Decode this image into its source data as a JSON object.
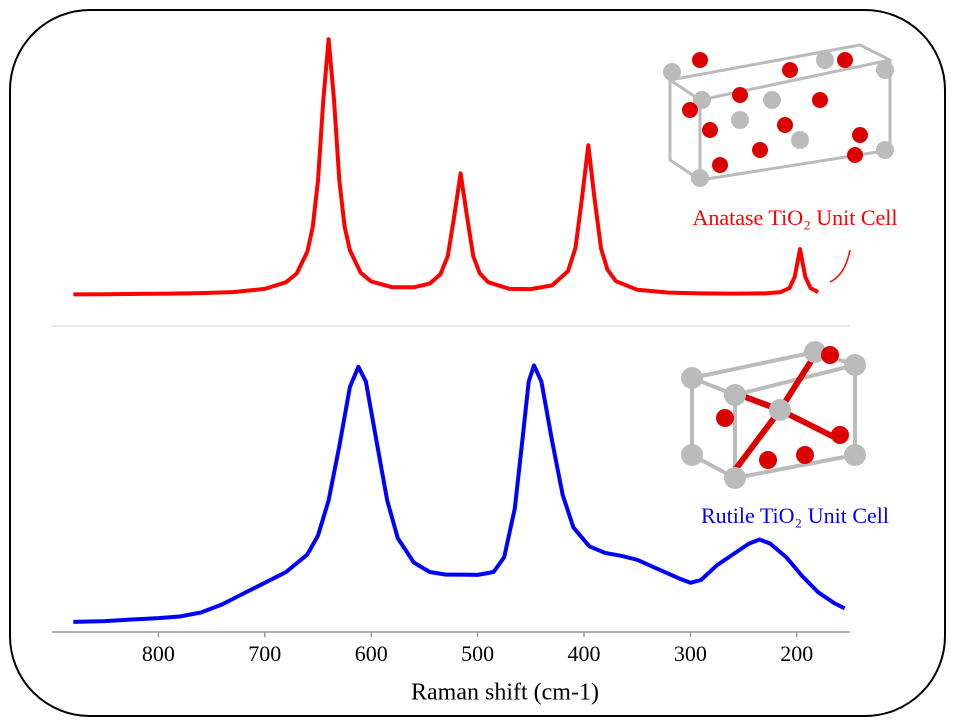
{
  "chart_data": [
    {
      "type": "line",
      "annotation": "Anatase TiO₂ Unit Cell",
      "x": [
        880,
        850,
        820,
        790,
        760,
        730,
        700,
        680,
        670,
        660,
        655,
        650,
        645,
        640,
        635,
        630,
        625,
        620,
        610,
        600,
        580,
        560,
        545,
        535,
        528,
        522,
        516,
        510,
        504,
        498,
        490,
        470,
        450,
        430,
        415,
        408,
        402,
        396,
        390,
        384,
        378,
        370,
        350,
        320,
        290,
        260,
        230,
        215,
        207,
        202,
        197,
        192,
        187,
        180
      ],
      "series": [
        {
          "color": "#ff0000",
          "values": [
            2.1,
            2.2,
            2.3,
            2.4,
            2.6,
            3.0,
            4.2,
            6.7,
            10.0,
            18.3,
            27.5,
            45.1,
            75.4,
            98.4,
            75.6,
            45.3,
            27.7,
            18.8,
            10.3,
            7.0,
            4.8,
            4.8,
            6.2,
            9.7,
            16.6,
            31.6,
            47.8,
            31.5,
            16.5,
            10.1,
            6.7,
            4.2,
            4.1,
            5.5,
            10.9,
            19.7,
            38.2,
            58.4,
            38.1,
            19.5,
            11.5,
            7.1,
            3.9,
            2.8,
            2.5,
            2.4,
            2.5,
            3.0,
            4.5,
            8.7,
            19.2,
            8.7,
            4.5,
            3.0
          ]
        }
      ],
      "xlim": [
        900,
        150
      ],
      "ylim": [
        0,
        100
      ]
    },
    {
      "type": "line",
      "annotation": "Rutile  TiO₂ Unit Cell",
      "xlabel": "Raman shift (cm-1)",
      "x": [
        880,
        850,
        820,
        800,
        780,
        760,
        740,
        720,
        700,
        680,
        660,
        650,
        640,
        630,
        620,
        612,
        605,
        595,
        585,
        575,
        560,
        545,
        530,
        515,
        500,
        485,
        475,
        465,
        458,
        452,
        447,
        440,
        430,
        420,
        410,
        395,
        380,
        365,
        350,
        330,
        310,
        300,
        290,
        275,
        260,
        245,
        235,
        225,
        210,
        195,
        180,
        165,
        155
      ],
      "series": [
        {
          "color": "#0000ff",
          "values": [
            3.0,
            3.3,
            4.0,
            4.4,
            5.0,
            6.5,
            9.5,
            13.5,
            17.5,
            21.5,
            28,
            35,
            48,
            68,
            90,
            97.5,
            92,
            70,
            48,
            34,
            25,
            21.5,
            20.5,
            20.5,
            20.4,
            21.5,
            27,
            45,
            70,
            92,
            98,
            92,
            70,
            50,
            38,
            31,
            28.5,
            27.5,
            26,
            22.5,
            19,
            17.5,
            18.5,
            24,
            28,
            32,
            33.5,
            32,
            27,
            20,
            14,
            10,
            8
          ]
        }
      ],
      "xlim": [
        900,
        150
      ],
      "xticks": [
        800,
        700,
        600,
        500,
        400,
        300,
        200
      ],
      "ylim": [
        0,
        100
      ]
    }
  ]
}
